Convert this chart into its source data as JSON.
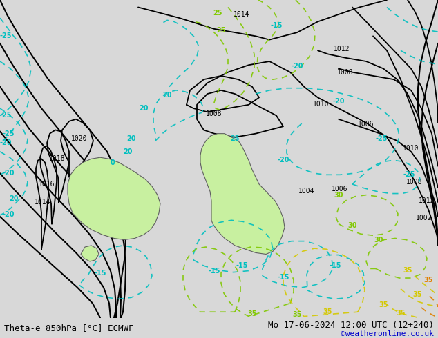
{
  "title_left": "Theta-e 850hPa [°C] ECMWF",
  "title_right": "Mo 17-06-2024 12:00 UTC (12+240)",
  "copyright": "©weatheronline.co.uk",
  "bg_color": "#d8d8d8",
  "nz_fill_color": "#c8f0a0",
  "pressure_color": "#000000",
  "theta_e_cyan_color": "#00bfbf",
  "theta_e_green_color": "#80c800",
  "theta_e_yellow_color": "#d4c800",
  "theta_e_orange_color": "#e08000",
  "figsize": [
    6.34,
    4.9
  ],
  "dpi": 100
}
